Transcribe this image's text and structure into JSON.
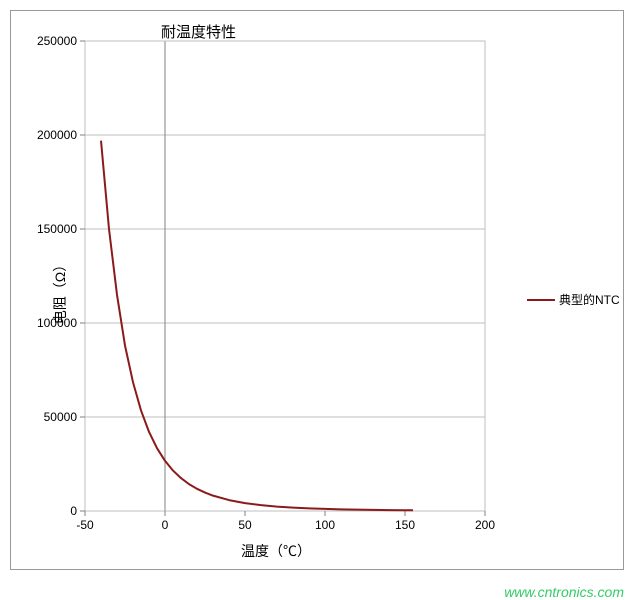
{
  "chart": {
    "type": "line",
    "title": "耐温度特性",
    "ylabel": "电阻（Ω）",
    "xlabel": "温度（℃）",
    "legend_label": "典型的NTC",
    "line_color": "#8B1A1A",
    "line_width": 2,
    "background_color": "#ffffff",
    "grid_color": "#bfbfbf",
    "axis_color": "#808080",
    "border_color": "#999999",
    "title_fontsize": 15,
    "label_fontsize": 14,
    "tick_fontsize": 12,
    "xlim": [
      -50,
      200
    ],
    "ylim": [
      0,
      250000
    ],
    "x_ticks": [
      -50,
      0,
      50,
      100,
      150,
      200
    ],
    "y_ticks": [
      0,
      50000,
      100000,
      150000,
      200000,
      250000
    ],
    "x_tick_labels": [
      "-50",
      "0",
      "50",
      "100",
      "150",
      "200"
    ],
    "y_tick_labels": [
      "0",
      "50000",
      "100000",
      "150000",
      "200000",
      "250000"
    ],
    "series": {
      "x": [
        -40,
        -35,
        -30,
        -25,
        -20,
        -15,
        -10,
        -5,
        0,
        5,
        10,
        15,
        20,
        25,
        30,
        40,
        50,
        60,
        70,
        80,
        90,
        100,
        110,
        120,
        130,
        140,
        150,
        155
      ],
      "y": [
        197000,
        150000,
        115000,
        88000,
        68500,
        53500,
        42100,
        33400,
        26700,
        21500,
        17500,
        14300,
        11800,
        9800,
        8175,
        5800,
        4200,
        3100,
        2340,
        1800,
        1400,
        1100,
        880,
        710,
        580,
        480,
        400,
        380
      ]
    }
  },
  "watermark": {
    "text": "www.cntronics.com",
    "color": "#33cc66"
  }
}
